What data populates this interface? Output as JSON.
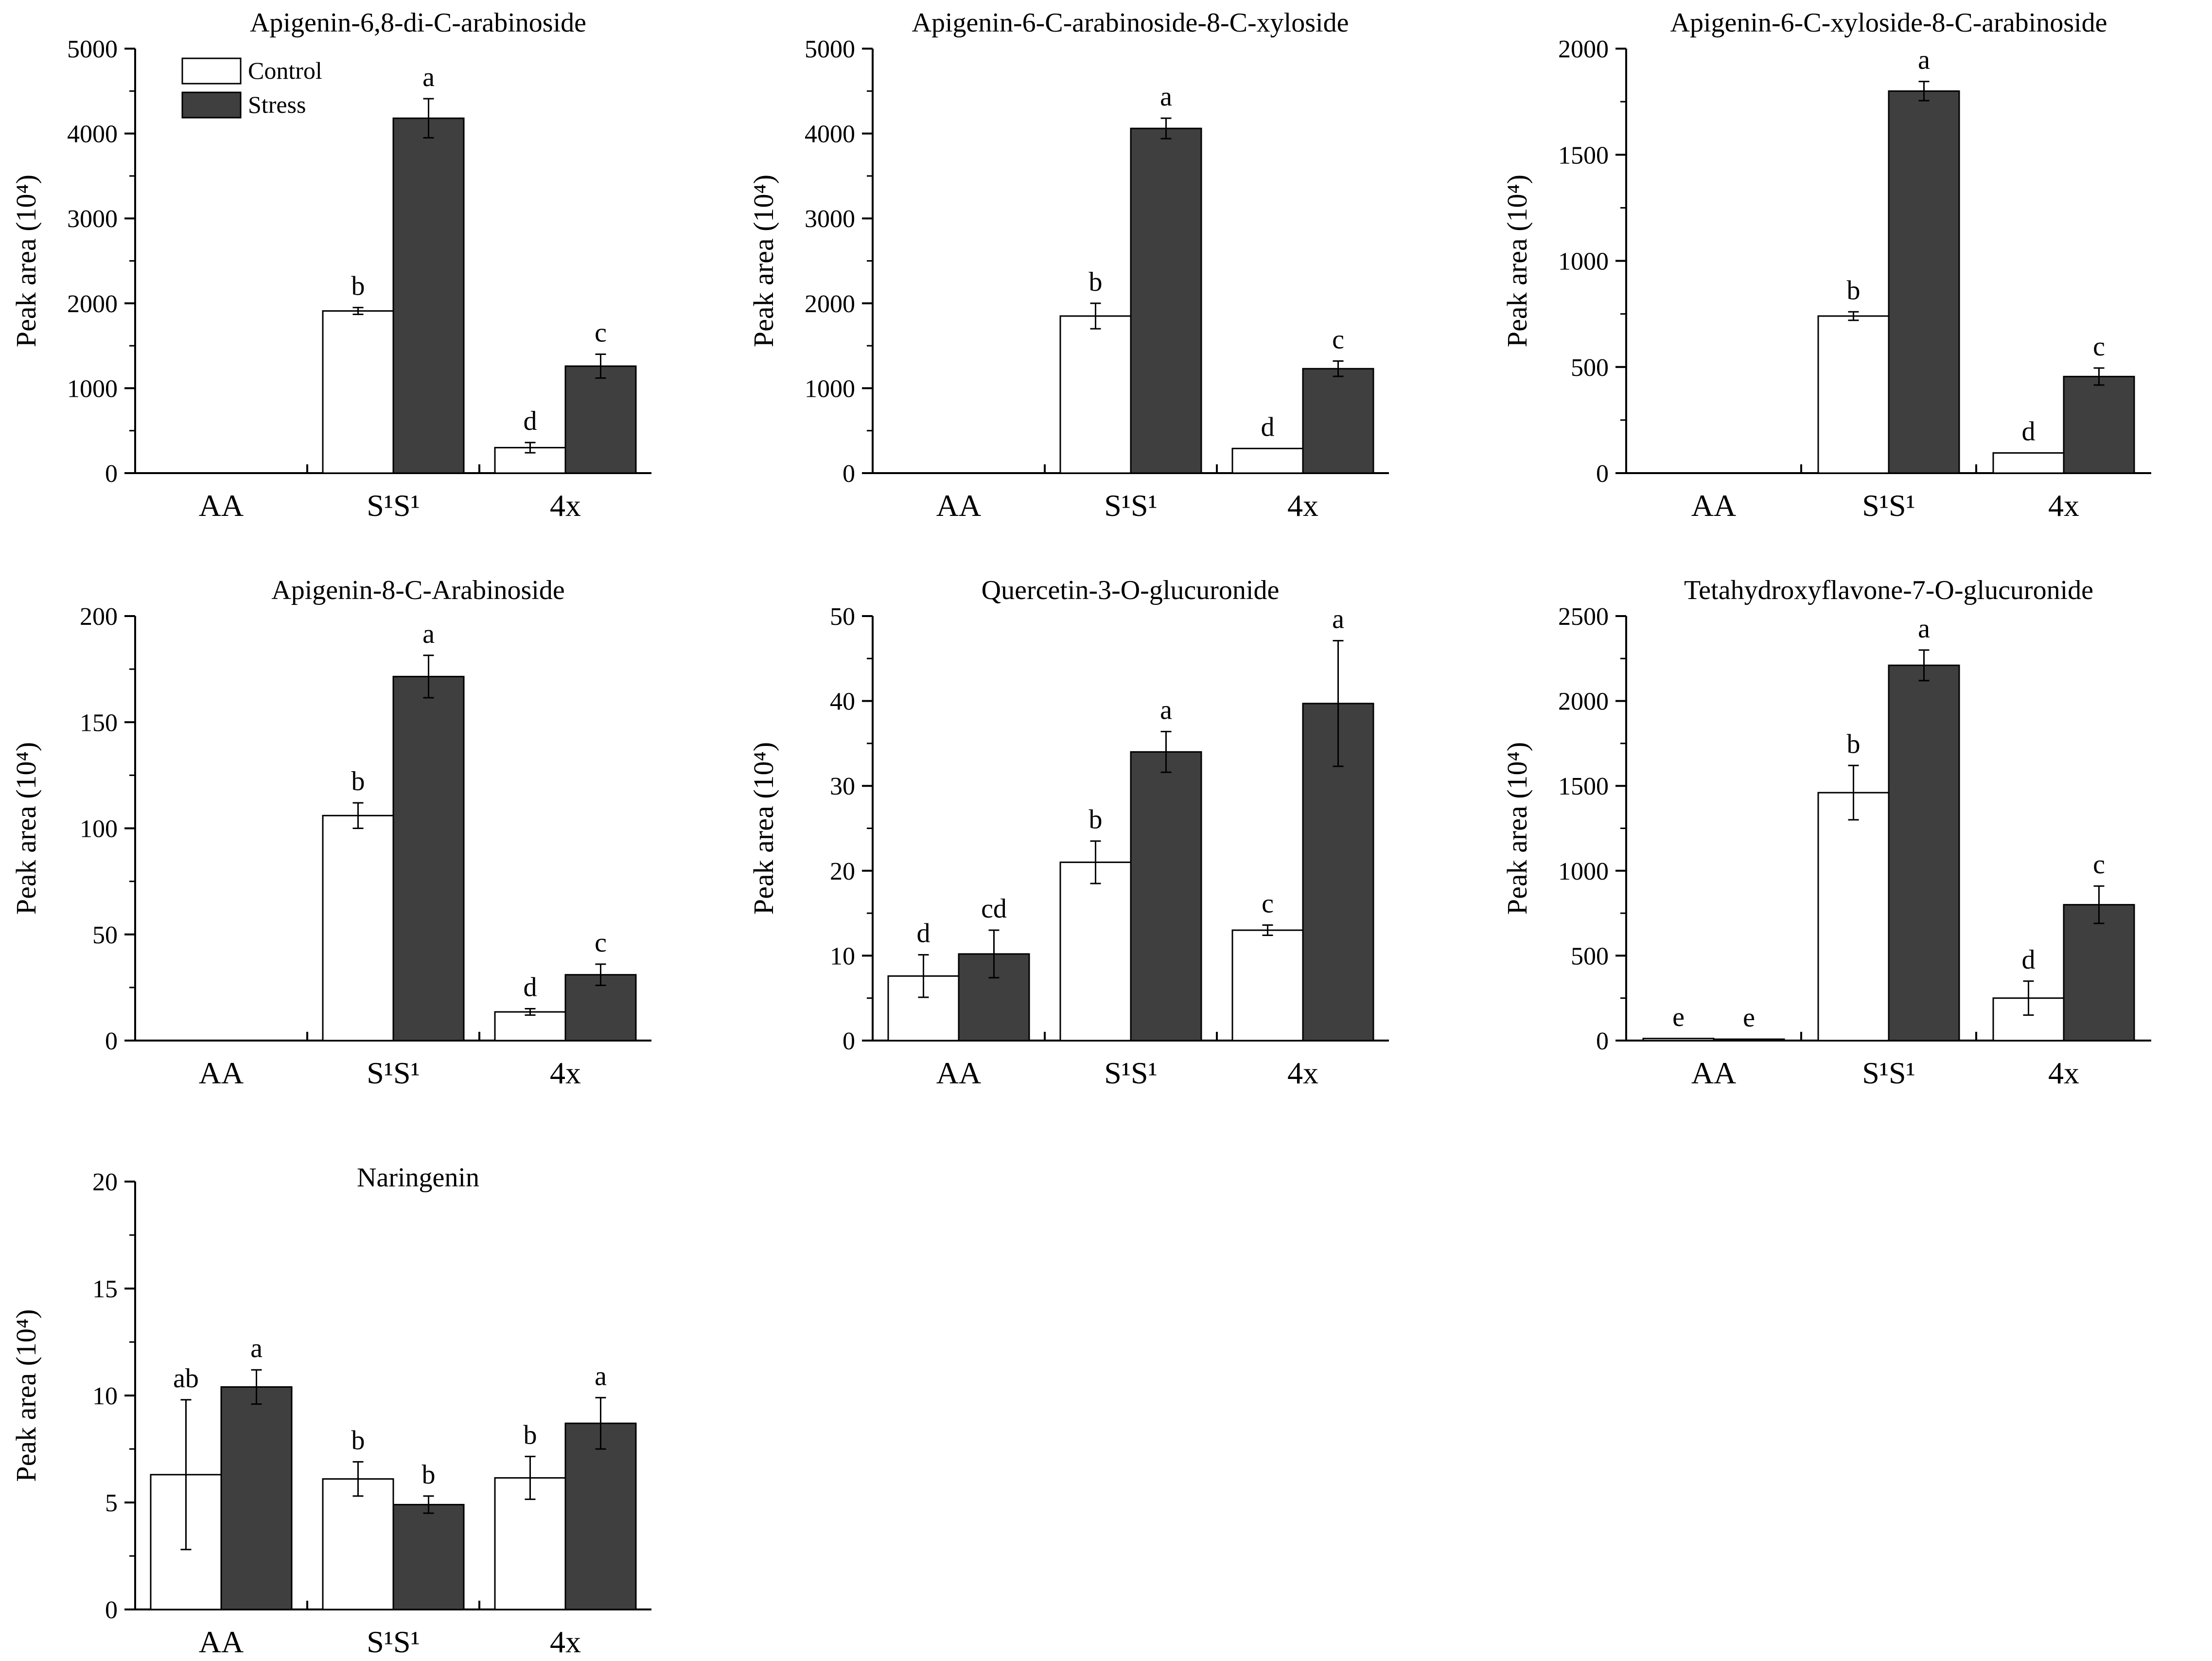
{
  "legend": {
    "control_label": "Control",
    "stress_label": "Stress"
  },
  "colors": {
    "control_fill": "#ffffff",
    "stress_fill": "#3f3f3f",
    "axis": "#000000"
  },
  "chart_data": [
    {
      "type": "bar",
      "title": "Apigenin-6,8-di-C-arabinoside",
      "ylabel": "Peak area (10⁴)",
      "categories": [
        "AA",
        "S¹S¹",
        "4x"
      ],
      "ylim": [
        0,
        5000
      ],
      "yticks": [
        0,
        1000,
        2000,
        3000,
        4000,
        5000
      ],
      "series": [
        {
          "name": "Control",
          "values": [
            0,
            1910,
            300
          ],
          "errors": [
            0,
            40,
            60
          ],
          "letters": [
            "",
            "b",
            "d"
          ]
        },
        {
          "name": "Stress",
          "values": [
            0,
            4180,
            1260
          ],
          "errors": [
            0,
            230,
            140
          ],
          "letters": [
            "",
            "a",
            "c"
          ]
        }
      ]
    },
    {
      "type": "bar",
      "title": "Apigenin-6-C-arabinoside-8-C-xyloside",
      "ylabel": "Peak area (10⁴)",
      "categories": [
        "AA",
        "S¹S¹",
        "4x"
      ],
      "ylim": [
        0,
        5000
      ],
      "yticks": [
        0,
        1000,
        2000,
        3000,
        4000,
        5000
      ],
      "series": [
        {
          "name": "Control",
          "values": [
            0,
            1850,
            290
          ],
          "errors": [
            0,
            150,
            0
          ],
          "letters": [
            "",
            "b",
            "d"
          ]
        },
        {
          "name": "Stress",
          "values": [
            0,
            4060,
            1230
          ],
          "errors": [
            0,
            120,
            90
          ],
          "letters": [
            "",
            "a",
            "c"
          ]
        }
      ]
    },
    {
      "type": "bar",
      "title": "Apigenin-6-C-xyloside-8-C-arabinoside",
      "ylabel": "Peak area (10⁴)",
      "categories": [
        "AA",
        "S¹S¹",
        "4x"
      ],
      "ylim": [
        0,
        2000
      ],
      "yticks": [
        0,
        500,
        1000,
        1500,
        2000
      ],
      "series": [
        {
          "name": "Control",
          "values": [
            0,
            740,
            95
          ],
          "errors": [
            0,
            20,
            0
          ],
          "letters": [
            "",
            "b",
            "d"
          ]
        },
        {
          "name": "Stress",
          "values": [
            0,
            1800,
            455
          ],
          "errors": [
            0,
            45,
            40
          ],
          "letters": [
            "",
            "a",
            "c"
          ]
        }
      ]
    },
    {
      "type": "bar",
      "title": "Apigenin-8-C-Arabinoside",
      "ylabel": "Peak area (10⁴)",
      "categories": [
        "AA",
        "S¹S¹",
        "4x"
      ],
      "ylim": [
        0,
        200
      ],
      "yticks": [
        0,
        50,
        100,
        150,
        200
      ],
      "series": [
        {
          "name": "Control",
          "values": [
            0,
            106,
            13.5
          ],
          "errors": [
            0,
            6,
            1.5
          ],
          "letters": [
            "",
            "b",
            "d"
          ]
        },
        {
          "name": "Stress",
          "values": [
            0,
            171.5,
            31
          ],
          "errors": [
            0,
            10,
            5
          ],
          "letters": [
            "",
            "a",
            "c"
          ]
        }
      ]
    },
    {
      "type": "bar",
      "title": "Quercetin-3-O-glucuronide",
      "ylabel": "Peak area (10⁴)",
      "categories": [
        "AA",
        "S¹S¹",
        "4x"
      ],
      "ylim": [
        0,
        50
      ],
      "yticks": [
        0,
        10,
        20,
        30,
        40,
        50
      ],
      "series": [
        {
          "name": "Control",
          "values": [
            7.6,
            21,
            13
          ],
          "errors": [
            2.5,
            2.5,
            0.6
          ],
          "letters": [
            "d",
            "b",
            "c"
          ]
        },
        {
          "name": "Stress",
          "values": [
            10.2,
            34,
            39.7
          ],
          "errors": [
            2.8,
            2.4,
            7.4
          ],
          "letters": [
            "cd",
            "a",
            "a"
          ]
        }
      ]
    },
    {
      "type": "bar",
      "title": "Tetahydroxyflavone-7-O-glucuronide",
      "ylabel": "Peak area (10⁴)",
      "categories": [
        "AA",
        "S¹S¹",
        "4x"
      ],
      "ylim": [
        0,
        2500
      ],
      "yticks": [
        0,
        500,
        1000,
        1500,
        2000,
        2500
      ],
      "series": [
        {
          "name": "Control",
          "values": [
            12,
            1460,
            250
          ],
          "errors": [
            0,
            160,
            100
          ],
          "letters": [
            "e",
            "b",
            "d"
          ]
        },
        {
          "name": "Stress",
          "values": [
            8,
            2210,
            800
          ],
          "errors": [
            0,
            90,
            110
          ],
          "letters": [
            "e",
            "a",
            "c"
          ]
        }
      ]
    },
    {
      "type": "bar",
      "title": "Naringenin",
      "ylabel": "Peak area (10⁴)",
      "categories": [
        "AA",
        "S¹S¹",
        "4x"
      ],
      "ylim": [
        0,
        20
      ],
      "yticks": [
        0,
        5,
        10,
        15,
        20
      ],
      "series": [
        {
          "name": "Control",
          "values": [
            6.3,
            6.1,
            6.15
          ],
          "errors": [
            3.5,
            0.8,
            1.0
          ],
          "letters": [
            "ab",
            "b",
            "b"
          ]
        },
        {
          "name": "Stress",
          "values": [
            10.4,
            4.9,
            8.7
          ],
          "errors": [
            0.8,
            0.4,
            1.2
          ],
          "letters": [
            "a",
            "b",
            "a"
          ]
        }
      ]
    }
  ]
}
